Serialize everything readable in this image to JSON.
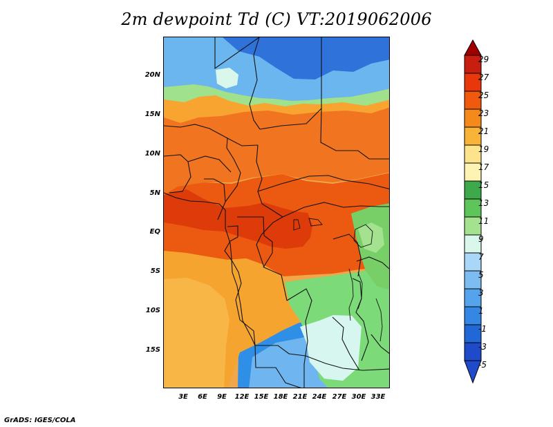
{
  "title": "2m dewpoint Td (C) VT:2019062006",
  "credit": "GrADS: IGES/COLA",
  "map": {
    "lat_ticks": [
      "20N",
      "15N",
      "10N",
      "5N",
      "EQ",
      "5S",
      "10S",
      "15S"
    ],
    "lon_ticks": [
      "3E",
      "6E",
      "9E",
      "12E",
      "15E",
      "18E",
      "21E",
      "24E",
      "27E",
      "30E",
      "33E"
    ]
  },
  "legend": {
    "labels": [
      "29",
      "27",
      "25",
      "23",
      "21",
      "19",
      "17",
      "15",
      "13",
      "11",
      "9",
      "7",
      "5",
      "3",
      "1",
      "-1",
      "-3",
      "-5"
    ],
    "colors": [
      "#a00000",
      "#c81e0f",
      "#e7370b",
      "#f05a0f",
      "#f58a1b",
      "#f8b439",
      "#fde38b",
      "#fff3b3",
      "#3ea94b",
      "#5ec55a",
      "#a4e28f",
      "#d9f7ea",
      "#a8d7f8",
      "#7dbcf0",
      "#55a3eb",
      "#3488e4",
      "#2267d6",
      "#1f4bcb"
    ]
  }
}
